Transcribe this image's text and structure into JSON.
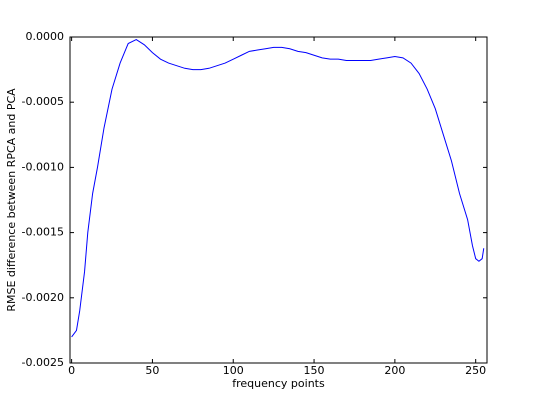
{
  "chart_data": {
    "type": "line",
    "xlabel": "frequency points",
    "ylabel": "RMSE difference between RPCA and PCA",
    "x": [
      0,
      3,
      5,
      8,
      10,
      13,
      16,
      20,
      25,
      30,
      35,
      40,
      45,
      50,
      55,
      60,
      65,
      70,
      75,
      80,
      85,
      90,
      95,
      100,
      105,
      110,
      115,
      120,
      125,
      130,
      135,
      140,
      145,
      150,
      155,
      160,
      165,
      170,
      175,
      180,
      185,
      190,
      195,
      200,
      205,
      210,
      215,
      220,
      225,
      230,
      235,
      240,
      245,
      248,
      250,
      252,
      254,
      255
    ],
    "values": [
      -0.0023,
      -0.00225,
      -0.0021,
      -0.0018,
      -0.0015,
      -0.0012,
      -0.001,
      -0.0007,
      -0.0004,
      -0.0002,
      -5e-05,
      -2e-05,
      -6e-05,
      -0.00012,
      -0.00017,
      -0.0002,
      -0.00022,
      -0.00024,
      -0.00025,
      -0.00025,
      -0.00024,
      -0.00022,
      -0.0002,
      -0.00017,
      -0.00014,
      -0.00011,
      -0.0001,
      -9e-05,
      -8e-05,
      -8e-05,
      -9e-05,
      -0.00011,
      -0.00012,
      -0.00014,
      -0.00016,
      -0.00017,
      -0.00017,
      -0.00018,
      -0.00018,
      -0.00018,
      -0.00018,
      -0.00017,
      -0.00016,
      -0.00015,
      -0.00016,
      -0.0002,
      -0.00028,
      -0.0004,
      -0.00055,
      -0.00075,
      -0.00095,
      -0.0012,
      -0.0014,
      -0.0016,
      -0.0017,
      -0.00172,
      -0.0017,
      -0.00162
    ],
    "color": "#0000ff",
    "xlim": [
      -1,
      257
    ],
    "ylim": [
      -0.0025,
      0
    ],
    "xticks": [
      0,
      50,
      100,
      150,
      200,
      250
    ],
    "yticks": [
      {
        "value": -0.0025,
        "label": "-0.0025"
      },
      {
        "value": -0.002,
        "label": "-0.0020"
      },
      {
        "value": -0.0015,
        "label": "-0.0015"
      },
      {
        "value": -0.001,
        "label": "-0.0010"
      },
      {
        "value": -0.0005,
        "label": "-0.0005"
      },
      {
        "value": 0,
        "label": "0.0000"
      }
    ]
  }
}
